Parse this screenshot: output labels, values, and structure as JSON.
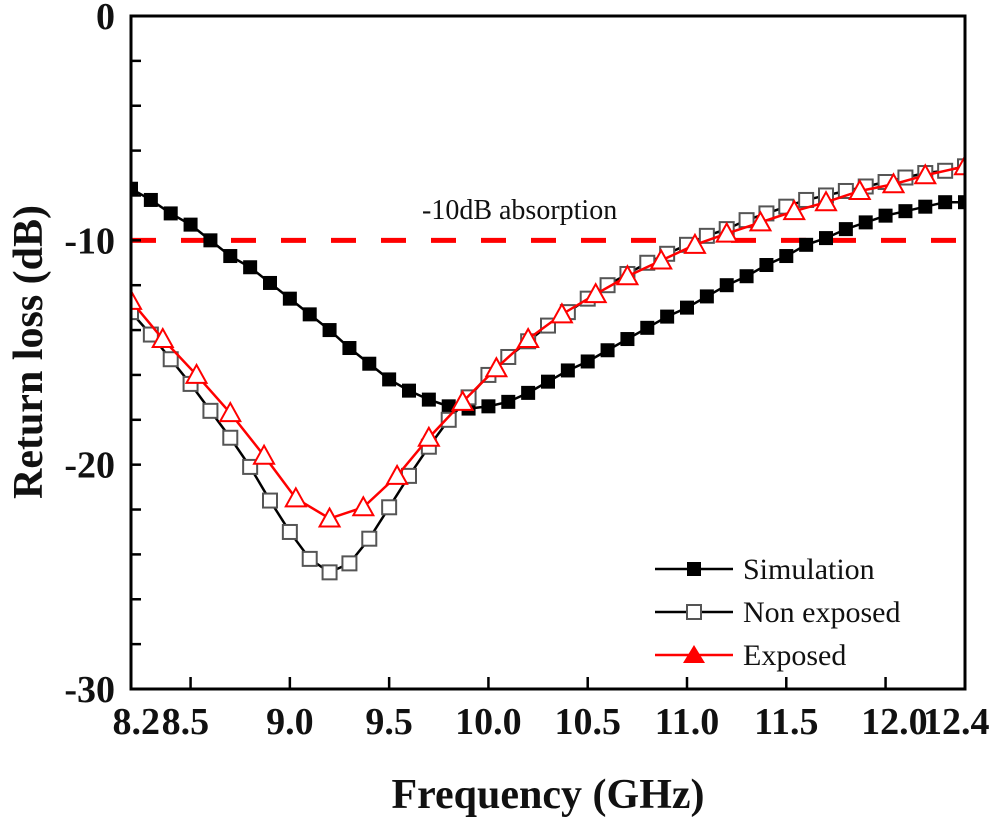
{
  "chart_data": {
    "type": "line",
    "title": "",
    "xlabel": "Frequency (GHz)",
    "ylabel": "Return loss (dB)",
    "xlim": [
      8.2,
      12.4
    ],
    "ylim": [
      -30,
      0
    ],
    "x_ticks": [
      8.2,
      8.5,
      9.0,
      9.5,
      10.0,
      10.5,
      11.0,
      11.5,
      12.0,
      12.4
    ],
    "x_tick_labels": [
      "8.2",
      "8.5",
      "9.0",
      "9.5",
      "10.0",
      "10.5",
      "11.0",
      "11.5",
      "12.0",
      "12.4"
    ],
    "y_ticks": [
      0,
      -10,
      -20,
      -30
    ],
    "y_tick_labels": [
      "0",
      "-10",
      "-20",
      "-30"
    ],
    "y_minor_step": 2,
    "grid": false,
    "legend_position": "bottom-right",
    "reference_line": {
      "y": -10,
      "label": "-10dB absorption",
      "color": "#ff0000",
      "style": "dashed"
    },
    "series": [
      {
        "name": "Simulation",
        "color": "#000000",
        "marker": "filled-square",
        "x": [
          8.2,
          8.3,
          8.4,
          8.5,
          8.6,
          8.7,
          8.8,
          8.9,
          9.0,
          9.1,
          9.2,
          9.3,
          9.4,
          9.5,
          9.6,
          9.7,
          9.8,
          9.9,
          10.0,
          10.1,
          10.2,
          10.3,
          10.4,
          10.5,
          10.6,
          10.7,
          10.8,
          10.9,
          11.0,
          11.1,
          11.2,
          11.3,
          11.4,
          11.5,
          11.6,
          11.7,
          11.8,
          11.9,
          12.0,
          12.1,
          12.2,
          12.3,
          12.4
        ],
        "values": [
          -7.7,
          -8.2,
          -8.8,
          -9.3,
          -10.0,
          -10.7,
          -11.2,
          -11.9,
          -12.6,
          -13.3,
          -14.0,
          -14.8,
          -15.5,
          -16.2,
          -16.7,
          -17.1,
          -17.4,
          -17.5,
          -17.4,
          -17.2,
          -16.8,
          -16.3,
          -15.8,
          -15.4,
          -14.9,
          -14.4,
          -13.9,
          -13.4,
          -13.0,
          -12.5,
          -12.0,
          -11.6,
          -11.1,
          -10.7,
          -10.2,
          -9.9,
          -9.5,
          -9.2,
          -8.9,
          -8.7,
          -8.5,
          -8.3,
          -8.3
        ]
      },
      {
        "name": "Non exposed",
        "color": "#000000",
        "marker": "open-square",
        "x": [
          8.2,
          8.3,
          8.4,
          8.5,
          8.6,
          8.7,
          8.8,
          8.9,
          9.0,
          9.1,
          9.2,
          9.3,
          9.4,
          9.5,
          9.6,
          9.7,
          9.8,
          9.9,
          10.0,
          10.1,
          10.2,
          10.3,
          10.4,
          10.5,
          10.6,
          10.7,
          10.8,
          10.9,
          11.0,
          11.1,
          11.2,
          11.3,
          11.4,
          11.5,
          11.6,
          11.7,
          11.8,
          11.9,
          12.0,
          12.1,
          12.2,
          12.3,
          12.4
        ],
        "values": [
          -13.2,
          -14.2,
          -15.3,
          -16.4,
          -17.6,
          -18.8,
          -20.1,
          -21.6,
          -23.0,
          -24.2,
          -24.8,
          -24.4,
          -23.3,
          -21.9,
          -20.5,
          -19.2,
          -18.0,
          -17.0,
          -16.0,
          -15.2,
          -14.5,
          -13.8,
          -13.2,
          -12.6,
          -12.0,
          -11.5,
          -11.0,
          -10.6,
          -10.2,
          -9.8,
          -9.5,
          -9.1,
          -8.8,
          -8.5,
          -8.2,
          -8.0,
          -7.8,
          -7.6,
          -7.4,
          -7.2,
          -7.0,
          -6.9,
          -6.7
        ]
      },
      {
        "name": "Exposed",
        "color": "#ff0000",
        "marker": "open-triangle",
        "x": [
          8.2,
          8.36,
          8.53,
          8.7,
          8.87,
          9.03,
          9.2,
          9.37,
          9.54,
          9.7,
          9.87,
          10.04,
          10.2,
          10.37,
          10.54,
          10.7,
          10.87,
          11.04,
          11.2,
          11.37,
          11.54,
          11.7,
          11.87,
          12.04,
          12.2,
          12.4
        ],
        "values": [
          -12.7,
          -14.4,
          -16.0,
          -17.7,
          -19.6,
          -21.5,
          -22.4,
          -21.9,
          -20.5,
          -18.8,
          -17.2,
          -15.7,
          -14.4,
          -13.3,
          -12.4,
          -11.6,
          -10.9,
          -10.2,
          -9.7,
          -9.2,
          -8.7,
          -8.3,
          -7.8,
          -7.5,
          -7.1,
          -6.7
        ]
      }
    ]
  }
}
